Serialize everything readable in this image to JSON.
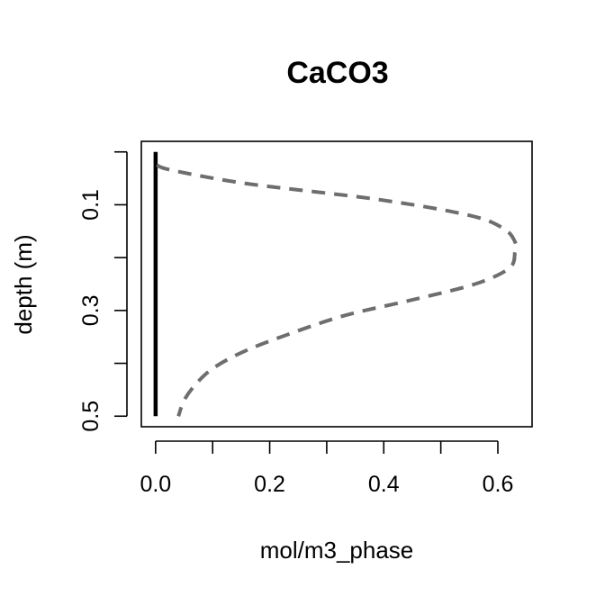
{
  "chart_data": {
    "type": "line",
    "title": "CaCO3",
    "xlabel": "mol/m3_phase",
    "ylabel": "depth (m)",
    "xlim": [
      -0.025,
      0.66
    ],
    "ylim": [
      0.52,
      -0.02
    ],
    "y_inverted": true,
    "grid": false,
    "legend": "none",
    "x_ticks": [
      0.0,
      0.1,
      0.2,
      0.3,
      0.4,
      0.5,
      0.6
    ],
    "x_tick_labels": [
      "0.0",
      "",
      "0.2",
      "",
      "0.4",
      "",
      "0.6"
    ],
    "y_ticks": [
      0.0,
      0.1,
      0.2,
      0.3,
      0.4,
      0.5
    ],
    "y_tick_labels": [
      "",
      "0.1",
      "",
      "0.3",
      "",
      "0.5"
    ],
    "series": [
      {
        "style": "solid",
        "color": "#000000",
        "x": [
          0,
          0,
          0,
          0,
          0,
          0,
          0,
          0,
          0,
          0,
          0
        ],
        "y": [
          0.0,
          0.05,
          0.1,
          0.15,
          0.2,
          0.25,
          0.3,
          0.35,
          0.4,
          0.45,
          0.5
        ]
      },
      {
        "style": "dashed",
        "color": "#6e6e6e",
        "x": [
          0.002,
          0.03,
          0.16,
          0.39,
          0.55,
          0.61,
          0.63,
          0.63,
          0.62,
          0.56,
          0.45,
          0.33,
          0.22,
          0.15,
          0.1,
          0.07,
          0.05,
          0.04
        ],
        "y": [
          0.025,
          0.035,
          0.06,
          0.09,
          0.12,
          0.145,
          0.17,
          0.19,
          0.22,
          0.25,
          0.28,
          0.31,
          0.35,
          0.38,
          0.41,
          0.44,
          0.47,
          0.5
        ]
      }
    ]
  }
}
